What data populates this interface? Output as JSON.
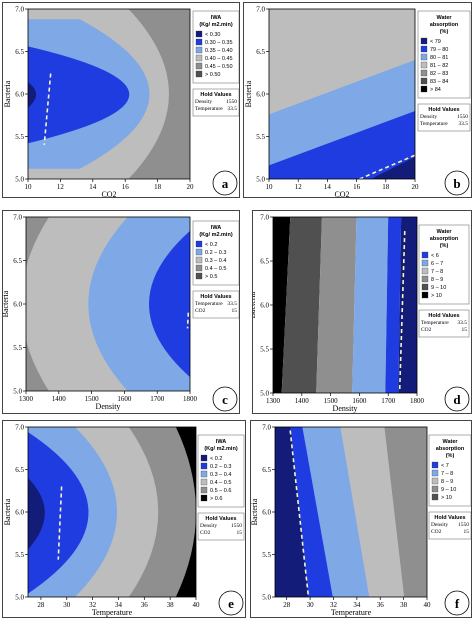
{
  "palette": {
    "light_blue": "#7FA8E6",
    "blue": "#1F3CE0",
    "navy": "#141C7A",
    "gray_dark": "#505050",
    "gray_mid": "#8F8F8F",
    "gray_light": "#BDBDBD",
    "black": "#000000",
    "dash": "#F5F5C8"
  },
  "chart_data": [
    {
      "panel_label": "a",
      "type": "contour",
      "xlabel": "CO2",
      "ylabel": "Bacteria",
      "xticks": [
        "10",
        "12",
        "14",
        "16",
        "18",
        "20"
      ],
      "yticks": [
        "5.0",
        "5.5",
        "6.0",
        "6.5",
        "7.0"
      ],
      "xlim": [
        10,
        20
      ],
      "ylim": [
        5.0,
        7.0
      ],
      "legend": {
        "title_lines": [
          "IWA",
          "(Kg/ m2.min)"
        ],
        "entries": [
          {
            "label": "< 0.30",
            "color": "navy"
          },
          {
            "label": "0.30 – 0.35",
            "color": "blue"
          },
          {
            "label": "0.35 – 0.40",
            "color": "light_blue"
          },
          {
            "label": "0.40 – 0.45",
            "color": "gray_light"
          },
          {
            "label": "0.45 – 0.50",
            "color": "gray_mid"
          },
          {
            "label": "> 0.50",
            "color": "gray_dark"
          }
        ]
      },
      "hold_values": {
        "title": "Hold Values",
        "rows": [
          [
            "Density",
            "1550"
          ],
          [
            "Temperature",
            "33.5"
          ]
        ]
      }
    },
    {
      "panel_label": "b",
      "type": "contour",
      "xlabel": "CO2",
      "ylabel": "Bacteria",
      "xticks": [
        "10",
        "12",
        "14",
        "16",
        "18",
        "20"
      ],
      "yticks": [
        "5.0",
        "5.5",
        "6.0",
        "6.5",
        "7.0"
      ],
      "xlim": [
        10,
        20
      ],
      "ylim": [
        5.0,
        7.0
      ],
      "legend": {
        "title_lines": [
          "Water",
          "absorption",
          "(%)"
        ],
        "entries": [
          {
            "label": "< 79",
            "color": "navy"
          },
          {
            "label": "79 – 80",
            "color": "blue"
          },
          {
            "label": "80 – 81",
            "color": "light_blue"
          },
          {
            "label": "81 – 82",
            "color": "gray_light"
          },
          {
            "label": "82 – 83",
            "color": "gray_mid"
          },
          {
            "label": "83 – 84",
            "color": "gray_dark"
          },
          {
            "label": "> 84",
            "color": "black"
          }
        ]
      },
      "hold_values": {
        "title": "Hold Values",
        "rows": [
          [
            "Density",
            "1550"
          ],
          [
            "Temperature",
            "33.5"
          ]
        ]
      }
    },
    {
      "panel_label": "c",
      "type": "contour",
      "xlabel": "Density",
      "ylabel": "Bacteria",
      "xticks": [
        "1300",
        "1400",
        "1500",
        "1600",
        "1700",
        "1800"
      ],
      "yticks": [
        "5.0",
        "5.5",
        "6.0",
        "6.5",
        "7.0"
      ],
      "xlim": [
        1300,
        1800
      ],
      "ylim": [
        5.0,
        7.0
      ],
      "legend": {
        "title_lines": [
          "IWA",
          "(Kg/ m2.min)"
        ],
        "entries": [
          {
            "label": "< 0.2",
            "color": "blue"
          },
          {
            "label": "0.2 – 0.3",
            "color": "light_blue"
          },
          {
            "label": "0.3 – 0.4",
            "color": "gray_light"
          },
          {
            "label": "0.4 – 0.5",
            "color": "gray_mid"
          },
          {
            "label": "> 0.5",
            "color": "gray_dark"
          }
        ]
      },
      "hold_values": {
        "title": "Hold Values",
        "rows": [
          [
            "Temperature",
            "33.5"
          ],
          [
            "CO2",
            "15"
          ]
        ]
      }
    },
    {
      "panel_label": "d",
      "type": "contour",
      "xlabel": "Density",
      "ylabel": "Bacteria",
      "xticks": [
        "1300",
        "1400",
        "1500",
        "1600",
        "1700",
        "1800"
      ],
      "yticks": [
        "5.0",
        "5.5",
        "6.0",
        "6.5",
        "7.0"
      ],
      "xlim": [
        1300,
        1800
      ],
      "ylim": [
        5.0,
        7.0
      ],
      "legend": {
        "title_lines": [
          "Water",
          "absorption",
          "(%)"
        ],
        "entries": [
          {
            "label": "< 6",
            "color": "blue"
          },
          {
            "label": "6 – 7",
            "color": "light_blue"
          },
          {
            "label": "7 – 8",
            "color": "gray_light"
          },
          {
            "label": "8 – 9",
            "color": "gray_mid"
          },
          {
            "label": "9 – 10",
            "color": "gray_dark"
          },
          {
            "label": "> 10",
            "color": "black"
          }
        ]
      },
      "hold_values": {
        "title": "Hold Values",
        "rows": [
          [
            "Temperature",
            "33.5"
          ],
          [
            "CO2",
            "15"
          ]
        ]
      }
    },
    {
      "panel_label": "e",
      "type": "contour",
      "xlabel": "Temperature",
      "ylabel": "Bacteria",
      "xticks": [
        "28",
        "30",
        "32",
        "34",
        "36",
        "38",
        "40"
      ],
      "yticks": [
        "5.0",
        "5.5",
        "6.0",
        "6.5",
        "7.0"
      ],
      "xlim": [
        27,
        40
      ],
      "ylim": [
        5.0,
        7.0
      ],
      "legend": {
        "title_lines": [
          "IWA",
          "(Kg/ m2.min)"
        ],
        "entries": [
          {
            "label": "< 0.2",
            "color": "navy"
          },
          {
            "label": "0.2 – 0.3",
            "color": "blue"
          },
          {
            "label": "0.3 – 0.4",
            "color": "light_blue"
          },
          {
            "label": "0.4 – 0.5",
            "color": "gray_light"
          },
          {
            "label": "0.5 – 0.6",
            "color": "gray_mid"
          },
          {
            "label": "> 0.6",
            "color": "black"
          }
        ]
      },
      "hold_values": {
        "title": "Hold Values",
        "rows": [
          [
            "Density",
            "1550"
          ],
          [
            "CO2",
            "15"
          ]
        ]
      }
    },
    {
      "panel_label": "f",
      "type": "contour",
      "xlabel": "Temperature",
      "ylabel": "Bacteria",
      "xticks": [
        "28",
        "30",
        "32",
        "34",
        "36",
        "38",
        "40"
      ],
      "yticks": [
        "5.0",
        "5.5",
        "6.0",
        "6.5",
        "7.0"
      ],
      "xlim": [
        27,
        40
      ],
      "ylim": [
        5.0,
        7.0
      ],
      "legend": {
        "title_lines": [
          "Water",
          "absorption",
          "(%)"
        ],
        "entries": [
          {
            "label": "< 7",
            "color": "blue"
          },
          {
            "label": "7 – 8",
            "color": "light_blue"
          },
          {
            "label": "8 – 9",
            "color": "gray_light"
          },
          {
            "label": "9 – 10",
            "color": "gray_mid"
          },
          {
            "label": "> 10",
            "color": "gray_dark"
          }
        ]
      },
      "hold_values": {
        "title": "Hold Values",
        "rows": [
          [
            "Density",
            "1550"
          ],
          [
            "CO2",
            "15"
          ]
        ]
      }
    }
  ]
}
